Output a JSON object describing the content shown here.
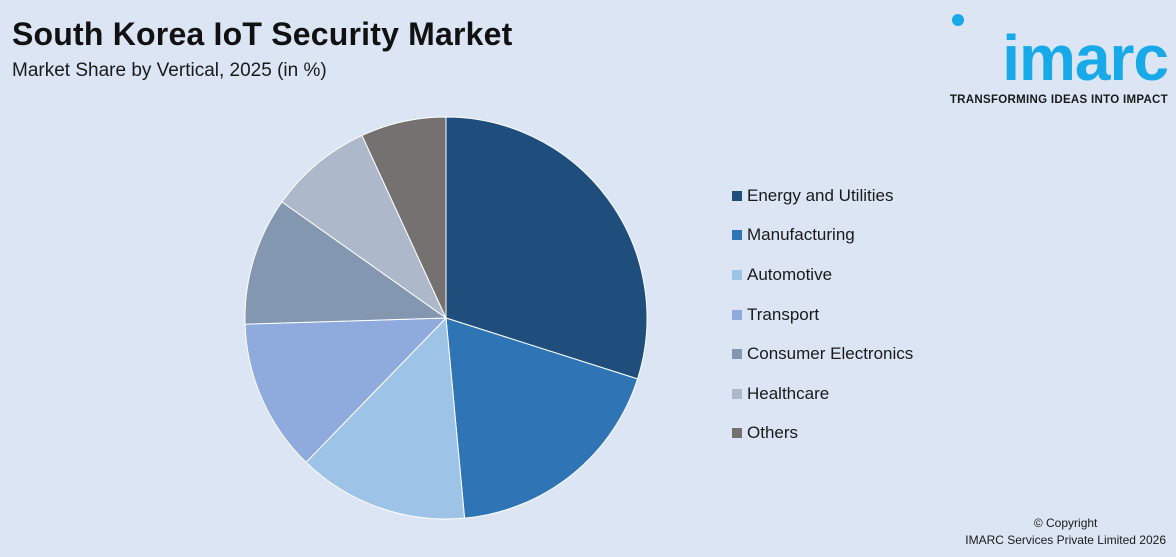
{
  "header": {
    "title": "South Korea IoT Security Market",
    "subtitle": "Market Share by Vertical, 2025 (in %)"
  },
  "logo": {
    "word": "imarc",
    "tagline": "TRANSFORMING IDEAS INTO IMPACT",
    "color": "#17a9e8"
  },
  "chart_data": {
    "type": "pie",
    "categories": [
      "Energy and Utilities",
      "Manufacturing",
      "Automotive",
      "Transport",
      "Consumer Electronics",
      "Healthcare",
      "Others"
    ],
    "values": [
      30.5,
      19.0,
      14.0,
      12.5,
      10.5,
      8.5,
      7.0
    ],
    "colors": [
      "#1f4e7c",
      "#2f75b6",
      "#9dc3e6",
      "#8faadc",
      "#8497b0",
      "#adb9ca",
      "#767171"
    ],
    "legend_position": "right",
    "start_angle": "top, clockwise"
  },
  "footer": {
    "copyright_line1": "© Copyright",
    "copyright_line2": "IMARC Services Private Limited 2026"
  }
}
